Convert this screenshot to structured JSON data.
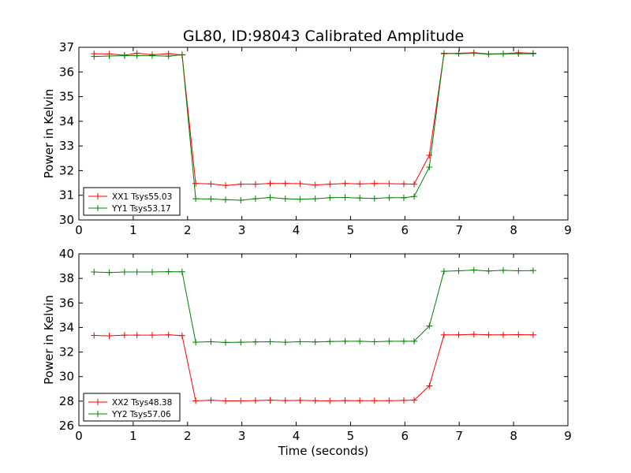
{
  "title": "GL80, ID:98043 Calibrated Amplitude",
  "xlabel": "Time (seconds)",
  "ylabel": "Power in Kelvin",
  "chart_data": [
    {
      "type": "line",
      "title": "GL80, ID:98043 Calibrated Amplitude",
      "xlabel": "",
      "ylabel": "Power in Kelvin",
      "xlim": [
        0,
        9
      ],
      "ylim": [
        30,
        37
      ],
      "xticks": [
        "0",
        "1",
        "2",
        "3",
        "4",
        "5",
        "6",
        "7",
        "8",
        "9"
      ],
      "yticks": [
        "30",
        "31",
        "32",
        "33",
        "34",
        "35",
        "36",
        "37"
      ],
      "grid": false,
      "legend_position": "lower-left",
      "x": [
        0.28,
        0.56,
        0.84,
        1.12,
        1.4,
        1.68,
        1.96,
        2.24,
        2.52,
        2.8,
        3.08,
        3.36,
        3.64,
        3.92,
        4.2,
        4.48,
        4.76,
        5.04,
        5.32,
        5.6,
        5.88,
        6.16,
        6.44,
        6.72,
        7.0,
        7.28,
        7.56,
        7.84,
        8.12,
        8.4
      ],
      "series": [
        {
          "name": "XX1 Tsys55.03",
          "color": "#ff0000",
          "x": [
            0.28,
            0.56,
            0.84,
            1.07,
            1.35,
            1.65,
            1.9,
            2.15,
            2.43,
            2.7,
            2.98,
            3.25,
            3.52,
            3.8,
            4.07,
            4.35,
            4.62,
            4.9,
            5.17,
            5.44,
            5.71,
            5.98,
            6.17,
            6.45,
            6.72,
            6.99,
            7.27,
            7.54,
            7.81,
            8.09,
            8.36
          ],
          "values": [
            36.74,
            36.73,
            36.68,
            36.76,
            36.7,
            36.74,
            36.69,
            31.48,
            31.46,
            31.4,
            31.45,
            31.45,
            31.48,
            31.48,
            31.47,
            31.42,
            31.45,
            31.48,
            31.46,
            31.48,
            31.47,
            31.46,
            31.45,
            32.62,
            36.74,
            36.76,
            36.78,
            36.73,
            36.74,
            36.78,
            36.76
          ]
        },
        {
          "name": "YY1 Tsys53.17",
          "color": "#008000",
          "x": [
            0.28,
            0.56,
            0.84,
            1.07,
            1.35,
            1.65,
            1.9,
            2.15,
            2.43,
            2.7,
            2.98,
            3.25,
            3.52,
            3.8,
            4.07,
            4.35,
            4.62,
            4.9,
            5.17,
            5.44,
            5.71,
            5.98,
            6.17,
            6.45,
            6.72,
            6.99,
            7.27,
            7.54,
            7.81,
            8.09,
            8.36
          ],
          "values": [
            36.63,
            36.65,
            36.66,
            36.66,
            36.66,
            36.64,
            36.7,
            30.86,
            30.85,
            30.82,
            30.8,
            30.86,
            30.91,
            30.86,
            30.84,
            30.86,
            30.9,
            30.91,
            30.89,
            30.87,
            30.9,
            30.9,
            30.95,
            32.14,
            36.76,
            36.74,
            36.76,
            36.72,
            36.73,
            36.74,
            36.74
          ]
        }
      ]
    },
    {
      "type": "line",
      "title": "",
      "xlabel": "Time (seconds)",
      "ylabel": "Power in Kelvin",
      "xlim": [
        0,
        9
      ],
      "ylim": [
        26,
        40
      ],
      "xticks": [
        "0",
        "1",
        "2",
        "3",
        "4",
        "5",
        "6",
        "7",
        "8",
        "9"
      ],
      "yticks": [
        "26",
        "28",
        "30",
        "32",
        "34",
        "36",
        "38",
        "40"
      ],
      "grid": false,
      "legend_position": "lower-left",
      "series": [
        {
          "name": "XX2 Tsys48.38",
          "color": "#ff0000",
          "x": [
            0.28,
            0.56,
            0.84,
            1.07,
            1.35,
            1.65,
            1.9,
            2.15,
            2.43,
            2.7,
            2.98,
            3.25,
            3.52,
            3.8,
            4.07,
            4.35,
            4.62,
            4.9,
            5.17,
            5.44,
            5.71,
            5.98,
            6.17,
            6.45,
            6.72,
            6.99,
            7.27,
            7.54,
            7.81,
            8.09,
            8.36
          ],
          "values": [
            33.35,
            33.32,
            33.38,
            33.38,
            33.38,
            33.4,
            33.34,
            28.02,
            28.08,
            28.02,
            28.02,
            28.05,
            28.08,
            28.05,
            28.06,
            28.04,
            28.02,
            28.05,
            28.04,
            28.04,
            28.04,
            28.06,
            28.08,
            29.24,
            33.4,
            33.4,
            33.44,
            33.4,
            33.4,
            33.42,
            33.4
          ]
        },
        {
          "name": "YY2 Tsys57.06",
          "color": "#008000",
          "x": [
            0.28,
            0.56,
            0.84,
            1.07,
            1.35,
            1.65,
            1.9,
            2.15,
            2.43,
            2.7,
            2.98,
            3.25,
            3.52,
            3.8,
            4.07,
            4.35,
            4.62,
            4.9,
            5.17,
            5.44,
            5.71,
            5.98,
            6.17,
            6.45,
            6.72,
            6.99,
            7.27,
            7.54,
            7.81,
            8.09,
            8.36
          ],
          "values": [
            38.52,
            38.48,
            38.52,
            38.52,
            38.52,
            38.55,
            38.54,
            32.8,
            32.84,
            32.78,
            32.8,
            32.82,
            32.84,
            32.8,
            32.84,
            32.82,
            32.86,
            32.88,
            32.88,
            32.84,
            32.88,
            32.88,
            32.88,
            34.12,
            38.58,
            38.62,
            38.68,
            38.6,
            38.66,
            38.62,
            38.64
          ]
        }
      ]
    }
  ]
}
